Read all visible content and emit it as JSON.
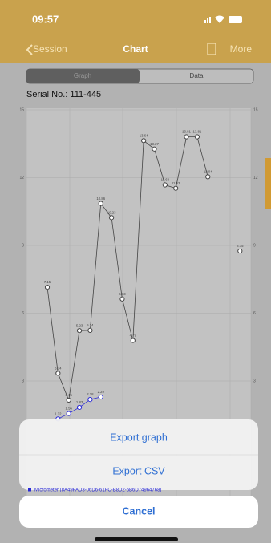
{
  "status_bar": {
    "time": "09:57"
  },
  "nav": {
    "back": "Session",
    "title": "Chart",
    "action": "More"
  },
  "segments": [
    "Graph",
    "Data"
  ],
  "serial": "Serial No.: 111-445",
  "chart_data": {
    "type": "line",
    "ylim": [
      0,
      15
    ],
    "yticks": [
      3,
      6,
      9,
      12,
      15
    ],
    "grid": true,
    "series": [
      {
        "color": "#444444",
        "values": [
          7.15,
          3.34,
          2.15,
          5.23,
          5.24,
          10.86,
          10.23,
          6.63,
          4.79,
          13.64,
          13.27,
          11.68,
          11.53,
          13.81,
          13.81,
          12.04,
          null,
          null,
          8.75
        ]
      },
      {
        "name": "Micrometer (8A49FAD3-06D6-61FC-B8D2-6B6D74964768)",
        "color": "#2a2ad6",
        "values": [
          null,
          1.32,
          1.56,
          1.83,
          2.18,
          2.29
        ]
      }
    ]
  },
  "action_sheet": {
    "buttons": [
      "Export graph",
      "Export CSV"
    ],
    "cancel": "Cancel"
  }
}
